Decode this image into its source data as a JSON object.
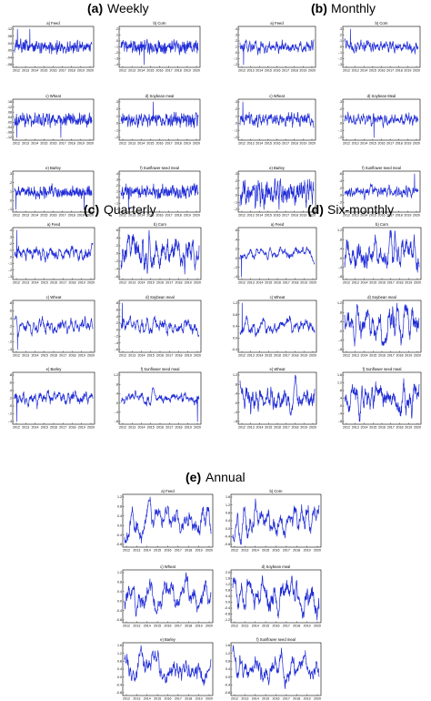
{
  "colors": {
    "line": "#1f2bd6",
    "frame": "#000000",
    "background": "#ffffff"
  },
  "x_ticks": [
    "2012",
    "2013",
    "2014",
    "2015",
    "2016",
    "2017",
    "2018",
    "2019",
    "2020"
  ],
  "groups": [
    {
      "letter": "(a)",
      "label": "Weekly"
    },
    {
      "letter": "(b)",
      "label": "Monthly"
    },
    {
      "letter": "(c)",
      "label": "Quarterly"
    },
    {
      "letter": "(d)",
      "label": "Six-monthly"
    },
    {
      "letter": "(e)",
      "label": "Annual"
    }
  ],
  "chart_data": [
    {
      "type": "line",
      "group": "Weekly",
      "title": "a) Feed",
      "y_ticks": [
        ".12",
        ".08",
        ".04",
        ".00",
        "-.04",
        "-.08"
      ],
      "ylim": [
        -0.1,
        0.14
      ],
      "seed": 11,
      "noise": 0.55,
      "smooth": 1,
      "spikes": [
        4,
        20
      ]
    },
    {
      "type": "line",
      "group": "Weekly",
      "title": "b) Corn",
      "y_ticks": [
        ".2",
        ".1",
        ".0",
        "-.1",
        "-.2",
        "-.3",
        "-.4"
      ],
      "ylim": [
        -0.45,
        0.25
      ],
      "seed": 12,
      "noise": 0.3,
      "smooth": 1,
      "spikes": [
        30
      ]
    },
    {
      "type": "line",
      "group": "Weekly",
      "title": "c) Wheat",
      "y_ticks": [
        ".16",
        ".12",
        ".08",
        ".04",
        ".00",
        "-.04",
        "-.08",
        "-.12"
      ],
      "ylim": [
        -0.14,
        0.18
      ],
      "seed": 13,
      "noise": 0.55,
      "smooth": 1,
      "spikes": [
        3,
        60
      ]
    },
    {
      "type": "line",
      "group": "Weekly",
      "title": "d) Soybean meal",
      "y_ticks": [
        ".3",
        ".2",
        ".1",
        ".0",
        "-.1",
        "-.2"
      ],
      "ylim": [
        -0.25,
        0.35
      ],
      "seed": 14,
      "noise": 0.45,
      "smooth": 1,
      "spikes": [
        42
      ]
    },
    {
      "type": "line",
      "group": "Weekly",
      "title": "e) Barley",
      "y_ticks": [
        ".3",
        ".2",
        ".1",
        ".0",
        "-.1"
      ],
      "ylim": [
        -0.14,
        0.32
      ],
      "seed": 15,
      "noise": 0.5,
      "smooth": 1,
      "spikes": [
        2,
        90
      ]
    },
    {
      "type": "line",
      "group": "Weekly",
      "title": "f) Sunflower seed meal",
      "y_ticks": [
        ".4",
        ".3",
        ".2",
        ".1",
        ".0",
        "-.1",
        "-.2"
      ],
      "ylim": [
        -0.25,
        0.45
      ],
      "seed": 16,
      "noise": 0.55,
      "smooth": 1,
      "spikes": [
        10
      ]
    },
    {
      "type": "line",
      "group": "Monthly",
      "title": "a) Feed",
      "y_ticks": [
        ".4",
        ".3",
        ".2",
        ".1",
        ".0",
        "-.1",
        "-.2"
      ],
      "ylim": [
        -0.22,
        0.42
      ],
      "seed": 21,
      "noise": 0.55,
      "smooth": 2,
      "spikes": [
        5
      ]
    },
    {
      "type": "line",
      "group": "Monthly",
      "title": "b) Corn",
      "y_ticks": [
        ".3",
        ".2",
        ".1",
        ".0",
        "-.1",
        "-.2",
        "-.3"
      ],
      "ylim": [
        -0.35,
        0.35
      ],
      "seed": 22,
      "noise": 0.5,
      "smooth": 2,
      "spikes": [
        8
      ]
    },
    {
      "type": "line",
      "group": "Monthly",
      "title": "c) Wheat",
      "y_ticks": [
        ".3",
        ".2",
        ".1",
        ".0",
        "-.1",
        "-.2"
      ],
      "ylim": [
        -0.25,
        0.35
      ],
      "seed": 23,
      "noise": 0.5,
      "smooth": 2,
      "spikes": [
        4
      ]
    },
    {
      "type": "line",
      "group": "Monthly",
      "title": "d) Soybean Meal",
      "y_ticks": [
        ".3",
        ".2",
        ".1",
        ".0",
        "-.1",
        "-.2"
      ],
      "ylim": [
        -0.25,
        0.35
      ],
      "seed": 24,
      "noise": 0.5,
      "smooth": 2,
      "spikes": [
        40
      ]
    },
    {
      "type": "line",
      "group": "Monthly",
      "title": "e) Barley",
      "y_ticks": [
        ".3",
        ".2",
        ".1",
        ".0",
        "-.1",
        "-.2"
      ],
      "ylim": [
        -0.25,
        0.35
      ],
      "seed": 25,
      "noise": 0.5,
      "smooth": 2,
      "spikes": []
    },
    {
      "type": "line",
      "group": "Monthly",
      "title": "f) Sunflower seed meal",
      "y_ticks": [
        ".6",
        ".4",
        ".2",
        ".0",
        "-.2",
        "-.4"
      ],
      "ylim": [
        -0.45,
        0.65
      ],
      "seed": 26,
      "noise": 0.5,
      "smooth": 2,
      "spikes": [
        95
      ]
    },
    {
      "type": "line",
      "group": "Quarterly",
      "title": "a) Feed",
      "y_ticks": [
        ".4",
        ".3",
        ".2",
        ".1",
        ".0",
        "-.1",
        "-.2",
        "-.3"
      ],
      "ylim": [
        -0.32,
        0.45
      ],
      "seed": 31,
      "noise": 0.5,
      "smooth": 4,
      "spikes": [
        3
      ]
    },
    {
      "type": "line",
      "group": "Quarterly",
      "title": "b) Corn",
      "y_ticks": [
        ".6",
        ".4",
        ".2",
        ".0",
        "-.2",
        "-.4",
        "-.6"
      ],
      "ylim": [
        -0.65,
        0.65
      ],
      "seed": 32,
      "noise": 0.5,
      "smooth": 4,
      "spikes": []
    },
    {
      "type": "line",
      "group": "Quarterly",
      "title": "c) Wheat",
      "y_ticks": [
        ".8",
        ".6",
        ".4",
        ".2",
        ".0",
        "-.2",
        "-.4"
      ],
      "ylim": [
        -0.45,
        0.85
      ],
      "seed": 33,
      "noise": 0.5,
      "smooth": 4,
      "spikes": [
        4
      ]
    },
    {
      "type": "line",
      "group": "Quarterly",
      "title": "d) Soybean meal",
      "y_ticks": [
        ".8",
        ".6",
        ".4",
        ".2",
        ".0",
        "-.2",
        "-.4",
        "-.6"
      ],
      "ylim": [
        -0.65,
        0.85
      ],
      "seed": 34,
      "noise": 0.5,
      "smooth": 4,
      "spikes": [
        2
      ]
    },
    {
      "type": "line",
      "group": "Quarterly",
      "title": "e) Barley",
      "y_ticks": [
        ".8",
        ".6",
        ".4",
        ".2",
        ".0",
        "-.2",
        "-.4"
      ],
      "ylim": [
        -0.45,
        0.85
      ],
      "seed": 35,
      "noise": 0.5,
      "smooth": 4,
      "spikes": [
        3
      ]
    },
    {
      "type": "line",
      "group": "Quarterly",
      "title": "f) Sunflower seed meal",
      "y_ticks": [
        "1.2",
        ".8",
        ".4",
        ".0",
        "-.4",
        "-.8"
      ],
      "ylim": [
        -0.9,
        1.25
      ],
      "seed": 36,
      "noise": 0.5,
      "smooth": 4,
      "spikes": [
        98
      ]
    },
    {
      "type": "line",
      "group": "Six-monthly",
      "title": "a) Feed",
      "y_ticks": [
        ".6",
        ".4",
        ".2",
        ".0",
        "-.2",
        "-.4"
      ],
      "ylim": [
        -0.45,
        0.65
      ],
      "seed": 41,
      "noise": 0.45,
      "smooth": 6,
      "spikes": [
        2
      ]
    },
    {
      "type": "line",
      "group": "Six-monthly",
      "title": "b) Corn",
      "y_ticks": [
        "1.2",
        ".8",
        ".4",
        ".0",
        "-.4",
        "-.8"
      ],
      "ylim": [
        -0.9,
        1.25
      ],
      "seed": 42,
      "noise": 0.45,
      "smooth": 6,
      "spikes": []
    },
    {
      "type": "line",
      "group": "Six-monthly",
      "title": "c) Wheat",
      "y_ticks": [
        "1.2",
        "0.8",
        "0.4",
        "0.0",
        "-0.4"
      ],
      "ylim": [
        -0.5,
        1.25
      ],
      "seed": 43,
      "noise": 0.45,
      "smooth": 6,
      "spikes": [
        3
      ]
    },
    {
      "type": "line",
      "group": "Six-monthly",
      "title": "d) Soybean meal",
      "y_ticks": [
        "1.2",
        ".8",
        ".4",
        ".0",
        "-.4",
        "-.8"
      ],
      "ylim": [
        -0.9,
        1.25
      ],
      "seed": 44,
      "noise": 0.45,
      "smooth": 6,
      "spikes": []
    },
    {
      "type": "line",
      "group": "Six-monthly",
      "title": "e) Wheat",
      "y_ticks": [
        "1.2",
        ".8",
        ".4",
        ".0",
        "-.4",
        "-.8"
      ],
      "ylim": [
        -0.9,
        1.25
      ],
      "seed": 45,
      "noise": 0.45,
      "smooth": 6,
      "spikes": []
    },
    {
      "type": "line",
      "group": "Six-monthly",
      "title": "f) Sunflower seed meal",
      "y_ticks": [
        "1.6",
        "1.2",
        ".8",
        ".4",
        ".0",
        "-.4",
        "-.8"
      ],
      "ylim": [
        -0.9,
        1.65
      ],
      "seed": 46,
      "noise": 0.45,
      "smooth": 6,
      "spikes": []
    },
    {
      "type": "line",
      "group": "Annual",
      "title": "a) Feed",
      "y_ticks": [
        "1.2",
        "0.8",
        "0.4",
        "0.0",
        "-0.4",
        "-0.8"
      ],
      "ylim": [
        -0.9,
        1.25
      ],
      "seed": 51,
      "noise": 0.35,
      "smooth": 8,
      "spikes": []
    },
    {
      "type": "line",
      "group": "Annual",
      "title": "b) Corn",
      "y_ticks": [
        "1.6",
        "1.2",
        "0.8",
        "0.4",
        "0.0",
        "-0.4",
        "-0.8"
      ],
      "ylim": [
        -0.9,
        1.65
      ],
      "seed": 52,
      "noise": 0.35,
      "smooth": 8,
      "spikes": []
    },
    {
      "type": "line",
      "group": "Annual",
      "title": "c) Wheat",
      "y_ticks": [
        "1.2",
        "0.8",
        "0.4",
        "0.0",
        "-0.4",
        "-0.8"
      ],
      "ylim": [
        -0.9,
        1.25
      ],
      "seed": 53,
      "noise": 0.35,
      "smooth": 8,
      "spikes": []
    },
    {
      "type": "line",
      "group": "Annual",
      "title": "d) Soybean meal",
      "y_ticks": [
        "2.0",
        "1.6",
        "1.2",
        "0.8",
        "0.4",
        "0.0",
        "-0.4",
        "-0.8",
        "-1.2"
      ],
      "ylim": [
        -1.3,
        2.05
      ],
      "seed": 54,
      "noise": 0.35,
      "smooth": 8,
      "spikes": []
    },
    {
      "type": "line",
      "group": "Annual",
      "title": "e) Barley",
      "y_ticks": [
        "1.6",
        "1.2",
        "0.8",
        "0.4",
        "0.0",
        "-0.4",
        "-0.8"
      ],
      "ylim": [
        -0.9,
        1.65
      ],
      "seed": 55,
      "noise": 0.3,
      "smooth": 10,
      "spikes": []
    },
    {
      "type": "line",
      "group": "Annual",
      "title": "f) Sunflower seed meal",
      "y_ticks": [
        "1.6",
        "1.2",
        "0.8",
        "0.4",
        "0.0",
        "-0.4",
        "-0.8"
      ],
      "ylim": [
        -0.9,
        1.65
      ],
      "seed": 56,
      "noise": 0.35,
      "smooth": 8,
      "spikes": []
    }
  ]
}
